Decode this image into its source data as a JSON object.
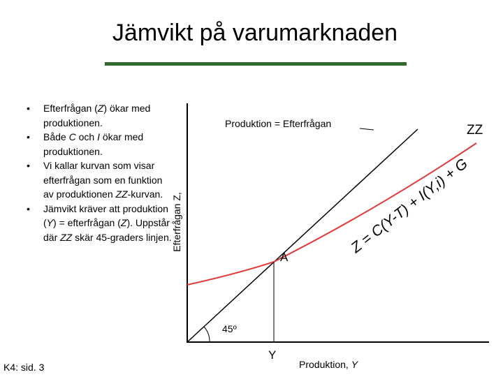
{
  "title": "Jämvikt på varumarknaden",
  "bullets": [
    [
      "Efterfrågan (",
      "Z",
      ") ökar med produktionen."
    ],
    [
      "Både ",
      "C",
      " och ",
      "I",
      " ökar med produktionen."
    ],
    [
      "Vi kallar kurvan som visar efterfrågan som en funktion av produktionen ",
      "ZZ",
      "-kurvan."
    ],
    [
      "Jämvikt kräver att produktion (",
      "Y",
      ") = efterfrågan (",
      "Z",
      "). Uppstår där ",
      "ZZ",
      " skär 45-graders linjen."
    ]
  ],
  "diagram": {
    "y_axis_label": "Efterfrågan Z,",
    "x_axis_label": [
      "Produktion, ",
      "Y"
    ],
    "line_label": "Produktion = Efterfrågan",
    "curve_label": "ZZ",
    "equation": "Z = C(Y-T) + I(Y,i) + G",
    "point_label": "A",
    "angle_label": "45º",
    "x_point_label": "Y"
  },
  "footer": "K4: sid. 3"
}
